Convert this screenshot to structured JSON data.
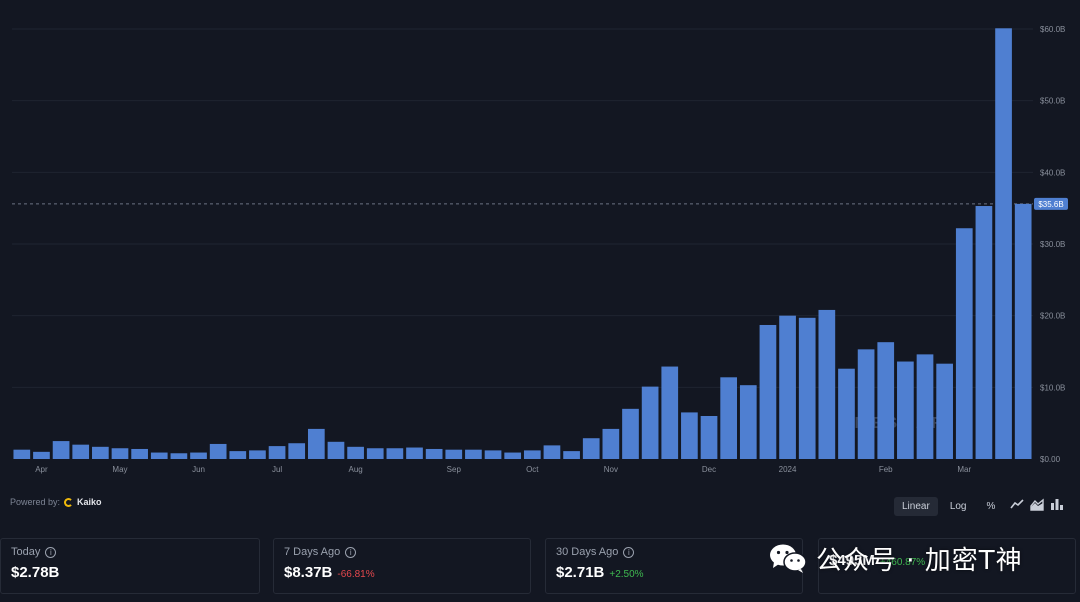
{
  "chart_data": {
    "type": "bar",
    "y_unit": "USD",
    "x_tick_labels": [
      "Apr",
      "May",
      "Jun",
      "Jul",
      "Aug",
      "Sep",
      "Oct",
      "Nov",
      "Dec",
      "2024",
      "Feb",
      "Mar"
    ],
    "x_tick_bar_index": [
      1,
      5,
      9,
      13,
      17,
      22,
      26,
      30,
      35,
      39,
      44,
      48
    ],
    "y_ticks": [
      "$0.00",
      "$10.0B",
      "$20.0B",
      "$30.0B",
      "$40.0B",
      "$50.0B",
      "$60.0B"
    ],
    "ylim": [
      0,
      60
    ],
    "values_billion": [
      1.3,
      1.0,
      2.5,
      2.0,
      1.7,
      1.5,
      1.4,
      0.9,
      0.8,
      0.9,
      2.1,
      1.1,
      1.2,
      1.8,
      2.2,
      4.2,
      2.4,
      1.7,
      1.5,
      1.5,
      1.6,
      1.4,
      1.3,
      1.3,
      1.2,
      0.9,
      1.2,
      1.9,
      1.1,
      2.9,
      4.2,
      7.0,
      10.1,
      12.9,
      6.5,
      6.0,
      11.4,
      10.3,
      18.7,
      20.0,
      19.7,
      20.8,
      12.6,
      15.3,
      16.3,
      13.6,
      14.6,
      13.3,
      32.2,
      35.3,
      60.1,
      35.6
    ],
    "current_value_label": "$35.6B",
    "current_value_billion": 35.6,
    "grid": true,
    "bar_color": "#4f7fd1",
    "watermark": "MESSARI",
    "xlabel": "",
    "ylabel": ""
  },
  "powered_by": {
    "label": "Powered by:",
    "provider": "Kaiko"
  },
  "scale_options": [
    {
      "label": "Linear",
      "active": true
    },
    {
      "label": "Log",
      "active": false
    },
    {
      "label": "%",
      "active": false
    }
  ],
  "chart_type_icons": [
    "line-chart-icon",
    "area-chart-icon",
    "bar-chart-icon"
  ],
  "cards": [
    {
      "label": "Today",
      "value": "$2.78B",
      "change": "",
      "trend": ""
    },
    {
      "label": "7 Days Ago",
      "value": "$8.37B",
      "change": "-66.81%",
      "trend": "neg"
    },
    {
      "label": "30 Days Ago",
      "value": "$2.71B",
      "change": "+2.50%",
      "trend": "pos"
    },
    {
      "label": "",
      "value": "$495M",
      "change": "+460.87%",
      "trend": "pos"
    }
  ],
  "overlay_watermark": "公众号 · 加密T神",
  "colors": {
    "background": "#131722",
    "grid": "#1f2431",
    "bar": "#4f7fd1",
    "negative": "#e5484d",
    "positive": "#3fb950"
  }
}
